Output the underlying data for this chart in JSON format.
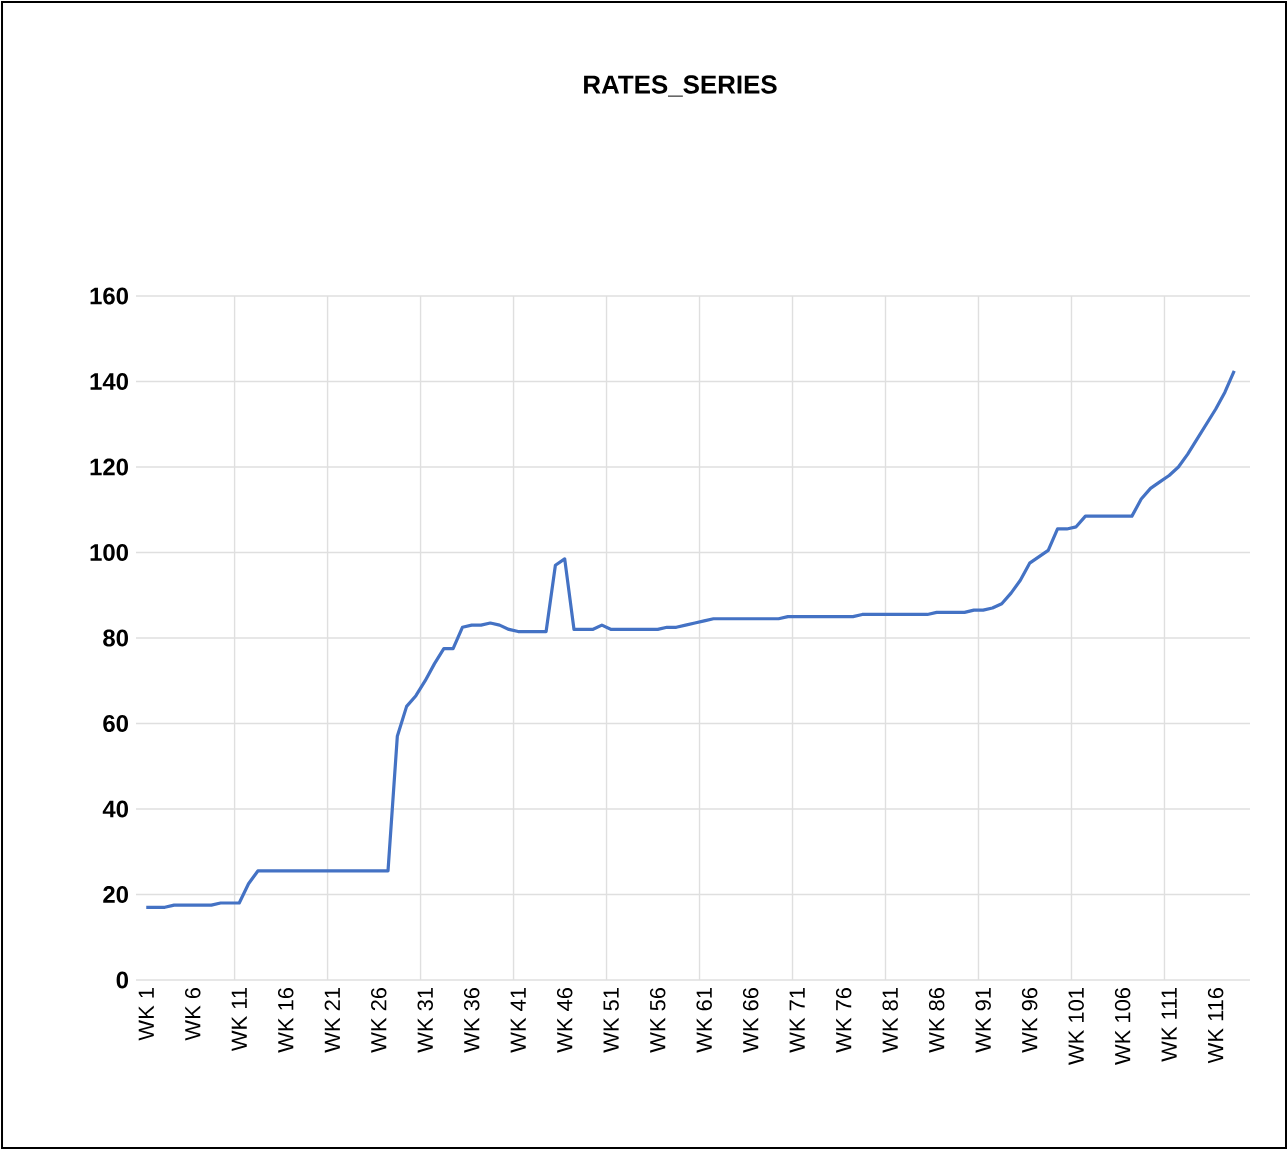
{
  "chart_data": {
    "type": "line",
    "title": "RATES_SERIES",
    "categories": [
      "WK 1",
      null,
      null,
      null,
      null,
      "WK 6",
      null,
      null,
      null,
      null,
      "WK 11",
      null,
      null,
      null,
      null,
      "WK 16",
      null,
      null,
      null,
      null,
      "WK 21",
      null,
      null,
      null,
      null,
      "WK 26",
      null,
      null,
      null,
      null,
      "WK 31",
      null,
      null,
      null,
      null,
      "WK 36",
      null,
      null,
      null,
      null,
      "WK 41",
      null,
      null,
      null,
      null,
      "WK 46",
      null,
      null,
      null,
      null,
      "WK 51",
      null,
      null,
      null,
      null,
      "WK 56",
      null,
      null,
      null,
      null,
      "WK 61",
      null,
      null,
      null,
      null,
      "WK 66",
      null,
      null,
      null,
      null,
      "WK 71",
      null,
      null,
      null,
      null,
      "WK 76",
      null,
      null,
      null,
      null,
      "WK 81",
      null,
      null,
      null,
      null,
      "WK 86",
      null,
      null,
      null,
      null,
      "WK 91",
      null,
      null,
      null,
      null,
      "WK 96",
      null,
      null,
      null,
      null,
      "WK 101",
      null,
      null,
      null,
      null,
      "WK 106",
      null,
      null,
      null,
      null,
      "WK 111",
      null,
      null,
      null,
      null,
      "WK 116",
      null,
      null
    ],
    "values": [
      17,
      17,
      17,
      17.5,
      17.5,
      17.5,
      17.5,
      17.5,
      18,
      18,
      18,
      22.5,
      25.5,
      25.5,
      25.5,
      25.5,
      25.5,
      25.5,
      25.5,
      25.5,
      25.5,
      25.5,
      25.5,
      25.5,
      25.5,
      25.5,
      25.5,
      57,
      64,
      66.5,
      70,
      74,
      77.5,
      77.5,
      82.5,
      83,
      83,
      83.5,
      83,
      82,
      81.5,
      81.5,
      81.5,
      81.5,
      97,
      98.5,
      82,
      82,
      82,
      83,
      82,
      82,
      82,
      82,
      82,
      82,
      82.5,
      82.5,
      83,
      83.5,
      84,
      84.5,
      84.5,
      84.5,
      84.5,
      84.5,
      84.5,
      84.5,
      84.5,
      85,
      85,
      85,
      85,
      85,
      85,
      85,
      85,
      85.5,
      85.5,
      85.5,
      85.5,
      85.5,
      85.5,
      85.5,
      85.5,
      86,
      86,
      86,
      86,
      86.5,
      86.5,
      87,
      88,
      90.5,
      93.5,
      97.5,
      99,
      100.5,
      105.5,
      105.5,
      106,
      108.5,
      108.5,
      108.5,
      108.5,
      108.5,
      108.5,
      112.5,
      115,
      116.5,
      118,
      120,
      123,
      126.5,
      130,
      133.5,
      137.5,
      142.5
    ],
    "color": "#4472c4",
    "ylim": [
      0,
      160
    ],
    "yticks": [
      0,
      20,
      40,
      60,
      80,
      100,
      120,
      140,
      160
    ],
    "grid": true
  }
}
